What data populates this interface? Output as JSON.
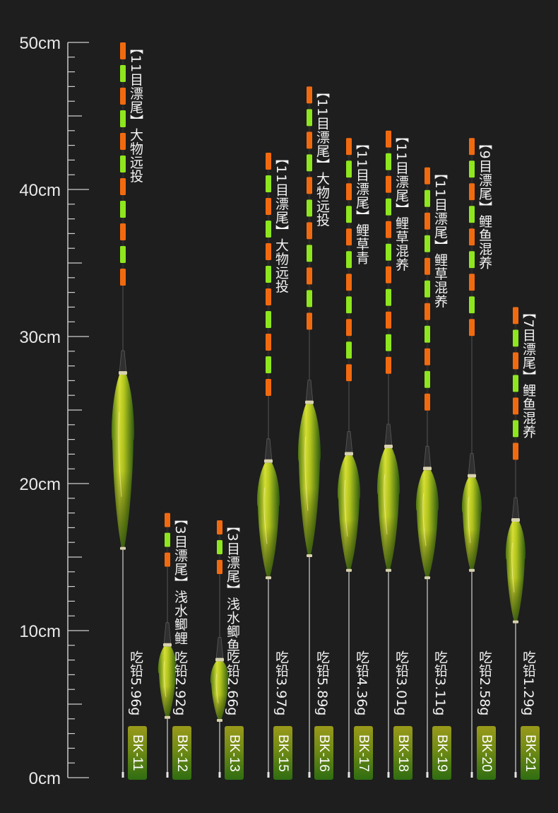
{
  "ruler": {
    "unit": "cm",
    "max_cm": 50,
    "labels": [
      "0cm",
      "10cm",
      "20cm",
      "30cm",
      "40cm",
      "50cm"
    ]
  },
  "colors": {
    "background": "#1e1e1e",
    "orange_segment": "#f26a10",
    "green_segment": "#8ee61e",
    "body_light": "#d8e034",
    "body_dark": "#1f5a14",
    "badge_green": "#2f6d12"
  },
  "floats": [
    {
      "model": "BK-11",
      "weight": "吃铅5.96g",
      "label": "【11目漂尾】大物远投",
      "length_cm": 50,
      "body_top_cm": 27.5,
      "body_bottom_cm": 15.5,
      "segments": 11
    },
    {
      "model": "BK-12",
      "weight": "吃铅2.92g",
      "label": "【3目漂尾】浅水鲫鲤",
      "length_cm": 18,
      "body_top_cm": 9,
      "body_bottom_cm": 4,
      "segments": 3
    },
    {
      "model": "BK-13",
      "weight": "吃铅2.66g",
      "label": "【3目漂尾】浅水鲫鱼",
      "length_cm": 17.5,
      "body_top_cm": 8,
      "body_bottom_cm": 3.8,
      "segments": 3
    },
    {
      "model": "BK-15",
      "weight": "吃铅3.97g",
      "label": "【11目漂尾】大物远投",
      "length_cm": 42.5,
      "body_top_cm": 21.5,
      "body_bottom_cm": 13.5,
      "segments": 11
    },
    {
      "model": "BK-16",
      "weight": "吃铅5.89g",
      "label": "【11目漂尾】大物远投",
      "length_cm": 47,
      "body_top_cm": 25.5,
      "body_bottom_cm": 15,
      "segments": 11
    },
    {
      "model": "BK-17",
      "weight": "吃铅4.36g",
      "label": "【11目漂尾】鲤草青",
      "length_cm": 43.5,
      "body_top_cm": 22,
      "body_bottom_cm": 14,
      "segments": 11
    },
    {
      "model": "BK-18",
      "weight": "吃铅3.01g",
      "label": "【11目漂尾】鲤草混养",
      "length_cm": 44,
      "body_top_cm": 22.5,
      "body_bottom_cm": 14,
      "segments": 11
    },
    {
      "model": "BK-19",
      "weight": "吃铅3.11g",
      "label": "【11目漂尾】鲤草混养",
      "length_cm": 41.5,
      "body_top_cm": 21,
      "body_bottom_cm": 13.5,
      "segments": 11
    },
    {
      "model": "BK-20",
      "weight": "吃铅2.58g",
      "label": "【9目漂尾】鲤鱼混养",
      "length_cm": 43.5,
      "body_top_cm": 20.5,
      "body_bottom_cm": 14,
      "segments": 9
    },
    {
      "model": "BK-21",
      "weight": "吃铅1.29g",
      "label": "【7目漂尾】鲤鱼混养",
      "length_cm": 32,
      "body_top_cm": 17.5,
      "body_bottom_cm": 10.5,
      "segments": 7
    }
  ]
}
